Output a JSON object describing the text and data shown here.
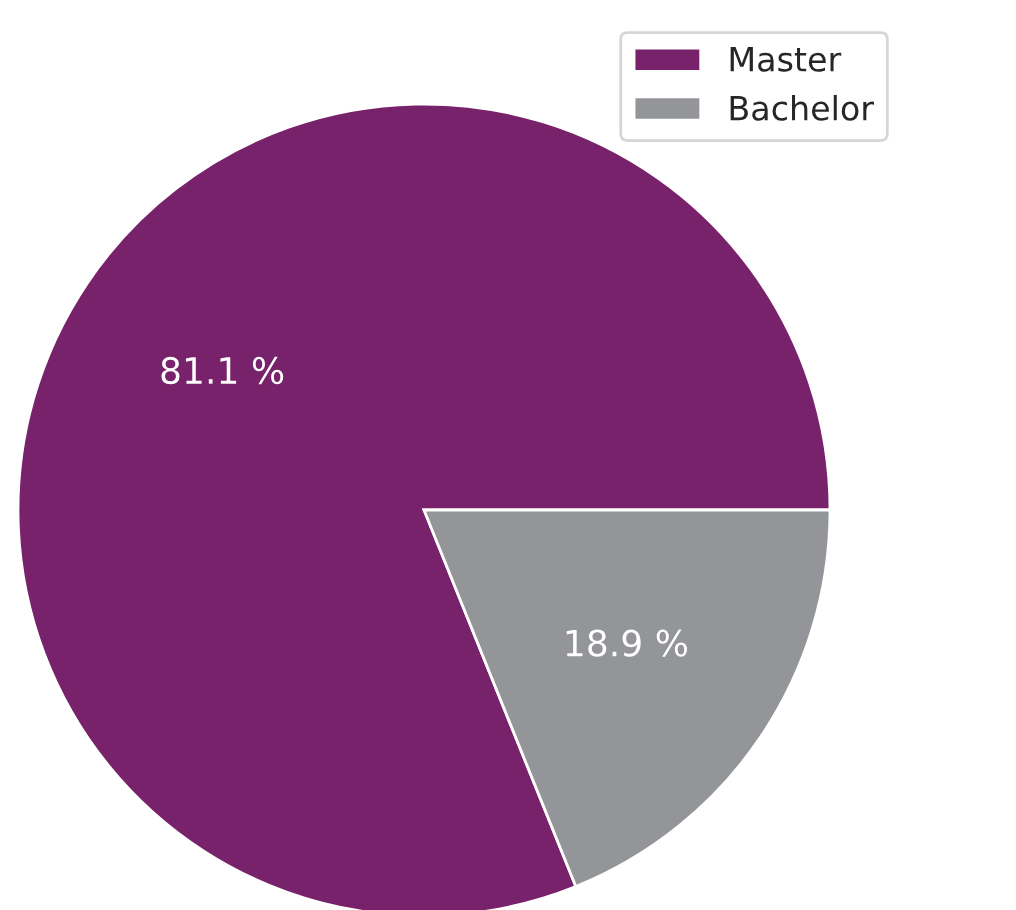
{
  "chart_data": {
    "type": "pie",
    "categories": [
      "Master",
      "Bachelor"
    ],
    "values": [
      81.1,
      18.9
    ],
    "colors": [
      "#77226a",
      "#939598"
    ],
    "value_labels": [
      "81.1 %",
      "18.9 %"
    ],
    "legend": "top right"
  }
}
